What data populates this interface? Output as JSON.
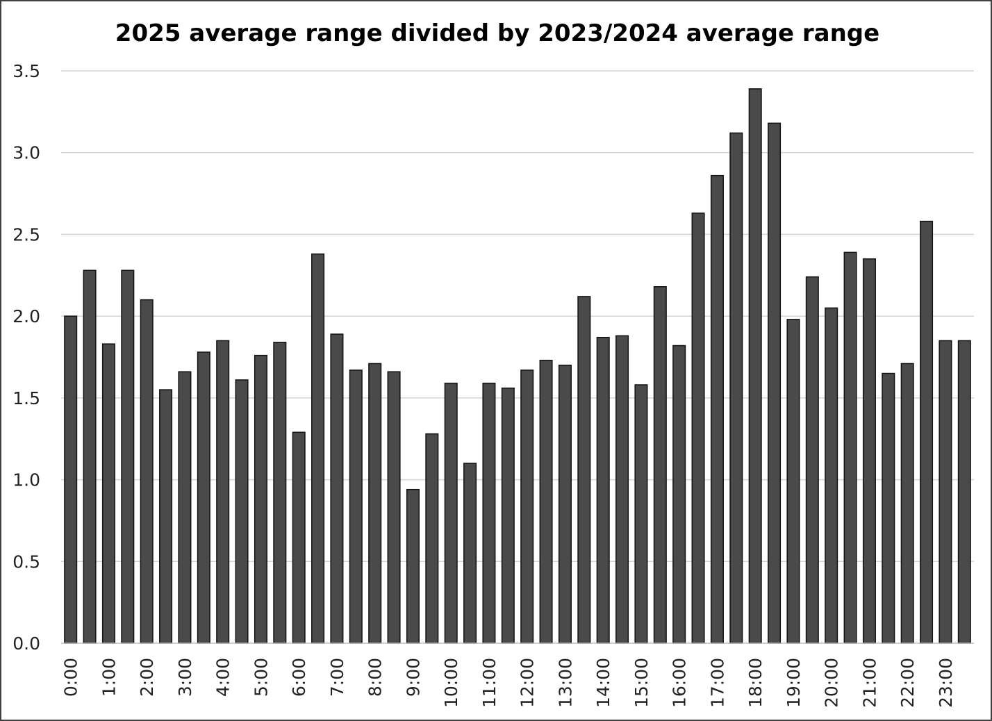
{
  "chart_data": {
    "type": "bar",
    "title": "2025 average range divided by 2023/2024 average range",
    "xlabel": "",
    "ylabel": "",
    "ylim": [
      0,
      3.5
    ],
    "yticks": [
      "0.0",
      "0.5",
      "1.0",
      "1.5",
      "2.0",
      "2.5",
      "3.0",
      "3.5"
    ],
    "grid": "horizontal",
    "legend": "none",
    "categories": [
      "0:00",
      "0:30",
      "1:00",
      "1:30",
      "2:00",
      "2:30",
      "3:00",
      "3:30",
      "4:00",
      "4:30",
      "5:00",
      "5:30",
      "6:00",
      "6:30",
      "7:00",
      "7:30",
      "8:00",
      "8:30",
      "9:00",
      "9:30",
      "10:00",
      "10:30",
      "11:00",
      "11:30",
      "12:00",
      "12:30",
      "13:00",
      "13:30",
      "14:00",
      "14:30",
      "15:00",
      "15:30",
      "16:00",
      "16:30",
      "17:00",
      "17:30",
      "18:00",
      "18:30",
      "19:00",
      "19:30",
      "20:00",
      "20:30",
      "21:00",
      "21:30",
      "22:00",
      "22:30",
      "23:00",
      "23:30"
    ],
    "tick_labels": [
      "0:00",
      "",
      "1:00",
      "",
      "2:00",
      "",
      "3:00",
      "",
      "4:00",
      "",
      "5:00",
      "",
      "6:00",
      "",
      "7:00",
      "",
      "8:00",
      "",
      "9:00",
      "",
      "10:00",
      "",
      "11:00",
      "",
      "12:00",
      "",
      "13:00",
      "",
      "14:00",
      "",
      "15:00",
      "",
      "16:00",
      "",
      "17:00",
      "",
      "18:00",
      "",
      "19:00",
      "",
      "20:00",
      "",
      "21:00",
      "",
      "22:00",
      "",
      "23:00",
      ""
    ],
    "values": [
      2.0,
      2.28,
      1.83,
      2.28,
      2.1,
      1.55,
      1.66,
      1.78,
      1.85,
      1.61,
      1.76,
      1.84,
      1.29,
      2.38,
      1.89,
      1.67,
      1.71,
      1.66,
      0.94,
      1.28,
      1.59,
      1.1,
      1.59,
      1.56,
      1.67,
      1.73,
      1.7,
      2.12,
      1.87,
      1.88,
      1.58,
      2.18,
      1.82,
      2.63,
      2.86,
      3.12,
      3.39,
      3.18,
      1.98,
      2.24,
      2.05,
      2.39,
      2.35,
      1.65,
      1.71,
      2.58,
      1.85,
      1.85
    ],
    "colors": {
      "bar_fill": "#4a4a4a",
      "bar_stroke": "#111111",
      "grid": "#d4d4d4"
    }
  }
}
